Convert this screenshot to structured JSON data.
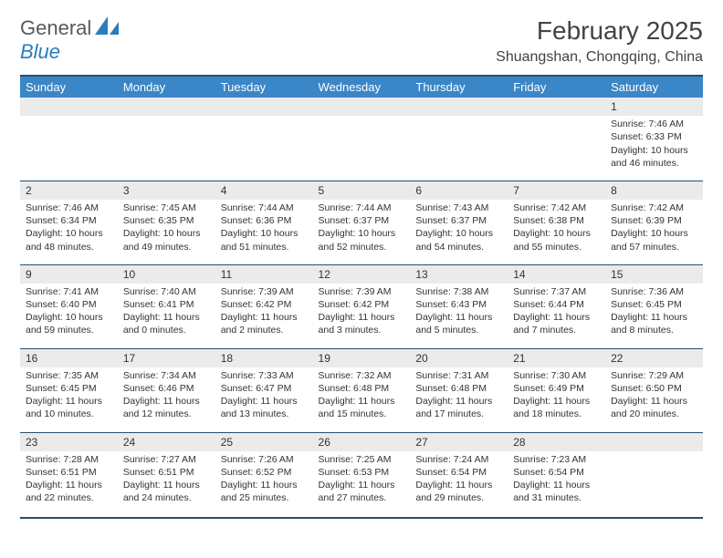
{
  "logo": {
    "text_gray": "General",
    "text_blue": "Blue"
  },
  "header": {
    "month_title": "February 2025",
    "location": "Shuangshan, Chongqing, China"
  },
  "day_headers": [
    "Sunday",
    "Monday",
    "Tuesday",
    "Wednesday",
    "Thursday",
    "Friday",
    "Saturday"
  ],
  "weeks": [
    [
      {
        "blank": true
      },
      {
        "blank": true
      },
      {
        "blank": true
      },
      {
        "blank": true
      },
      {
        "blank": true
      },
      {
        "blank": true
      },
      {
        "num": "1",
        "sunrise": "Sunrise: 7:46 AM",
        "sunset": "Sunset: 6:33 PM",
        "daylight": "Daylight: 10 hours and 46 minutes."
      }
    ],
    [
      {
        "num": "2",
        "sunrise": "Sunrise: 7:46 AM",
        "sunset": "Sunset: 6:34 PM",
        "daylight": "Daylight: 10 hours and 48 minutes."
      },
      {
        "num": "3",
        "sunrise": "Sunrise: 7:45 AM",
        "sunset": "Sunset: 6:35 PM",
        "daylight": "Daylight: 10 hours and 49 minutes."
      },
      {
        "num": "4",
        "sunrise": "Sunrise: 7:44 AM",
        "sunset": "Sunset: 6:36 PM",
        "daylight": "Daylight: 10 hours and 51 minutes."
      },
      {
        "num": "5",
        "sunrise": "Sunrise: 7:44 AM",
        "sunset": "Sunset: 6:37 PM",
        "daylight": "Daylight: 10 hours and 52 minutes."
      },
      {
        "num": "6",
        "sunrise": "Sunrise: 7:43 AM",
        "sunset": "Sunset: 6:37 PM",
        "daylight": "Daylight: 10 hours and 54 minutes."
      },
      {
        "num": "7",
        "sunrise": "Sunrise: 7:42 AM",
        "sunset": "Sunset: 6:38 PM",
        "daylight": "Daylight: 10 hours and 55 minutes."
      },
      {
        "num": "8",
        "sunrise": "Sunrise: 7:42 AM",
        "sunset": "Sunset: 6:39 PM",
        "daylight": "Daylight: 10 hours and 57 minutes."
      }
    ],
    [
      {
        "num": "9",
        "sunrise": "Sunrise: 7:41 AM",
        "sunset": "Sunset: 6:40 PM",
        "daylight": "Daylight: 10 hours and 59 minutes."
      },
      {
        "num": "10",
        "sunrise": "Sunrise: 7:40 AM",
        "sunset": "Sunset: 6:41 PM",
        "daylight": "Daylight: 11 hours and 0 minutes."
      },
      {
        "num": "11",
        "sunrise": "Sunrise: 7:39 AM",
        "sunset": "Sunset: 6:42 PM",
        "daylight": "Daylight: 11 hours and 2 minutes."
      },
      {
        "num": "12",
        "sunrise": "Sunrise: 7:39 AM",
        "sunset": "Sunset: 6:42 PM",
        "daylight": "Daylight: 11 hours and 3 minutes."
      },
      {
        "num": "13",
        "sunrise": "Sunrise: 7:38 AM",
        "sunset": "Sunset: 6:43 PM",
        "daylight": "Daylight: 11 hours and 5 minutes."
      },
      {
        "num": "14",
        "sunrise": "Sunrise: 7:37 AM",
        "sunset": "Sunset: 6:44 PM",
        "daylight": "Daylight: 11 hours and 7 minutes."
      },
      {
        "num": "15",
        "sunrise": "Sunrise: 7:36 AM",
        "sunset": "Sunset: 6:45 PM",
        "daylight": "Daylight: 11 hours and 8 minutes."
      }
    ],
    [
      {
        "num": "16",
        "sunrise": "Sunrise: 7:35 AM",
        "sunset": "Sunset: 6:45 PM",
        "daylight": "Daylight: 11 hours and 10 minutes."
      },
      {
        "num": "17",
        "sunrise": "Sunrise: 7:34 AM",
        "sunset": "Sunset: 6:46 PM",
        "daylight": "Daylight: 11 hours and 12 minutes."
      },
      {
        "num": "18",
        "sunrise": "Sunrise: 7:33 AM",
        "sunset": "Sunset: 6:47 PM",
        "daylight": "Daylight: 11 hours and 13 minutes."
      },
      {
        "num": "19",
        "sunrise": "Sunrise: 7:32 AM",
        "sunset": "Sunset: 6:48 PM",
        "daylight": "Daylight: 11 hours and 15 minutes."
      },
      {
        "num": "20",
        "sunrise": "Sunrise: 7:31 AM",
        "sunset": "Sunset: 6:48 PM",
        "daylight": "Daylight: 11 hours and 17 minutes."
      },
      {
        "num": "21",
        "sunrise": "Sunrise: 7:30 AM",
        "sunset": "Sunset: 6:49 PM",
        "daylight": "Daylight: 11 hours and 18 minutes."
      },
      {
        "num": "22",
        "sunrise": "Sunrise: 7:29 AM",
        "sunset": "Sunset: 6:50 PM",
        "daylight": "Daylight: 11 hours and 20 minutes."
      }
    ],
    [
      {
        "num": "23",
        "sunrise": "Sunrise: 7:28 AM",
        "sunset": "Sunset: 6:51 PM",
        "daylight": "Daylight: 11 hours and 22 minutes."
      },
      {
        "num": "24",
        "sunrise": "Sunrise: 7:27 AM",
        "sunset": "Sunset: 6:51 PM",
        "daylight": "Daylight: 11 hours and 24 minutes."
      },
      {
        "num": "25",
        "sunrise": "Sunrise: 7:26 AM",
        "sunset": "Sunset: 6:52 PM",
        "daylight": "Daylight: 11 hours and 25 minutes."
      },
      {
        "num": "26",
        "sunrise": "Sunrise: 7:25 AM",
        "sunset": "Sunset: 6:53 PM",
        "daylight": "Daylight: 11 hours and 27 minutes."
      },
      {
        "num": "27",
        "sunrise": "Sunrise: 7:24 AM",
        "sunset": "Sunset: 6:54 PM",
        "daylight": "Daylight: 11 hours and 29 minutes."
      },
      {
        "num": "28",
        "sunrise": "Sunrise: 7:23 AM",
        "sunset": "Sunset: 6:54 PM",
        "daylight": "Daylight: 11 hours and 31 minutes."
      },
      {
        "blank": true
      }
    ]
  ],
  "style": {
    "header_bg": "#3b86c6",
    "header_text": "#ffffff",
    "rule_color": "#264e74",
    "daynum_bg": "#ebebeb",
    "body_text": "#333333",
    "page_bg": "#ffffff",
    "logo_gray": "#555b60",
    "logo_blue": "#2a7dbd",
    "month_title_fontsize": 28,
    "location_fontsize": 16,
    "dayheader_fontsize": 13,
    "cell_fontsize": 10.5,
    "daynum_fontsize": 12
  }
}
